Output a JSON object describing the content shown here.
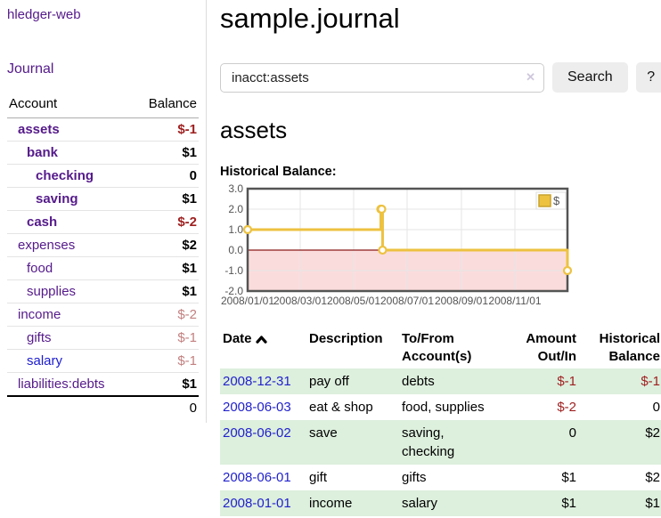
{
  "app": {
    "title": "hledger-web"
  },
  "colors": {
    "link_purple": "#551a8b",
    "link_blue": "#2222cc",
    "negative_strong": "#9e1f1f",
    "negative_muted": "#c28080",
    "series_gold": "#edc240",
    "series_gold_border": "#c9a32f",
    "stripe_green": "#ddefdd",
    "negative_region_pink": "#fbdcdc",
    "zero_line_red": "#8b1a1a",
    "axis_gray": "#545454",
    "grid_gray": "#e6e6e6"
  },
  "sidebar": {
    "nav": {
      "journal_label": "Journal"
    },
    "accounts_table": {
      "headers": {
        "account": "Account",
        "balance": "Balance"
      },
      "rows": [
        {
          "name": "assets",
          "depth": 1,
          "bold": true,
          "balance": "$-1",
          "balance_class": "neg-strong"
        },
        {
          "name": "bank",
          "depth": 2,
          "bold": true,
          "balance": "$1",
          "balance_class": "pos"
        },
        {
          "name": "checking",
          "depth": 3,
          "bold": true,
          "balance": "0",
          "balance_class": "pos"
        },
        {
          "name": "saving",
          "depth": 3,
          "bold": true,
          "balance": "$1",
          "balance_class": "pos"
        },
        {
          "name": "cash",
          "depth": 2,
          "bold": true,
          "balance": "$-2",
          "balance_class": "neg-strong"
        },
        {
          "name": "expenses",
          "depth": 1,
          "bold": false,
          "balance": "$2",
          "balance_class": "pos"
        },
        {
          "name": "food",
          "depth": 2,
          "bold": false,
          "balance": "$1",
          "balance_class": "pos"
        },
        {
          "name": "supplies",
          "depth": 2,
          "bold": false,
          "balance": "$1",
          "balance_class": "pos"
        },
        {
          "name": "income",
          "depth": 1,
          "bold": false,
          "balance": "$-2",
          "balance_class": "neg-muted"
        },
        {
          "name": "gifts",
          "depth": 2,
          "bold": false,
          "balance": "$-1",
          "balance_class": "neg-muted"
        },
        {
          "name": "salary",
          "depth": 2,
          "bold": false,
          "balance": "$-1",
          "balance_class": "neg-muted",
          "link_color": "blue"
        },
        {
          "name": "liabilities:debts",
          "depth": 1,
          "bold": false,
          "balance": "$1",
          "balance_class": "pos"
        }
      ],
      "total": "0"
    }
  },
  "main": {
    "title": "sample.journal",
    "search": {
      "value": "inacct:assets",
      "clear_icon": "✕",
      "button_label": "Search",
      "help_label": "?"
    },
    "account_heading": "assets",
    "chart_label": "Historical Balance:"
  },
  "chart_data": {
    "type": "line",
    "step": true,
    "title": "Historical Balance:",
    "series": [
      {
        "name": "$",
        "color": "#edc240",
        "points": [
          [
            "2008-01-01",
            1
          ],
          [
            "2008-06-01",
            2
          ],
          [
            "2008-06-02",
            2
          ],
          [
            "2008-06-03",
            0
          ],
          [
            "2008-12-31",
            -1
          ]
        ]
      }
    ],
    "x_range": [
      "2008-01-01",
      "2008-12-31"
    ],
    "ylim": [
      -2,
      3
    ],
    "y_ticks": [
      {
        "value": 3,
        "label": "3.0"
      },
      {
        "value": 2,
        "label": "2.0"
      },
      {
        "value": 1,
        "label": "1.0"
      },
      {
        "value": 0,
        "label": "0.0"
      },
      {
        "value": -1,
        "label": "-1.0"
      },
      {
        "value": -2,
        "label": "-2.0"
      }
    ],
    "x_ticks": [
      {
        "date": "2008-01-01",
        "label": "2008/01/01"
      },
      {
        "date": "2008-03-01",
        "label": "2008/03/01"
      },
      {
        "date": "2008-05-01",
        "label": "2008/05/01"
      },
      {
        "date": "2008-07-01",
        "label": "2008/07/01"
      },
      {
        "date": "2008-09-01",
        "label": "2008/09/01"
      },
      {
        "date": "2008-11-01",
        "label": "2008/11/01"
      }
    ],
    "legend": {
      "position": "top-right",
      "label": "$"
    },
    "grid": true,
    "negative_region_marking": true
  },
  "register_table": {
    "headers": {
      "date": "Date",
      "description": "Description",
      "accounts": "To/From Account(s)",
      "amount": "Amount Out/In",
      "balance": "Historical Balance"
    },
    "sort": {
      "column": "date",
      "direction": "ascending"
    },
    "rows": [
      {
        "date": "2008-12-31",
        "description": "pay off",
        "accounts": "debts",
        "amount": "$-1",
        "amount_neg": true,
        "balance": "$-1",
        "balance_neg": true
      },
      {
        "date": "2008-06-03",
        "description": "eat & shop",
        "accounts": "food, supplies",
        "amount": "$-2",
        "amount_neg": true,
        "balance": "0",
        "balance_neg": false
      },
      {
        "date": "2008-06-02",
        "description": "save",
        "accounts": "saving, checking",
        "amount": "0",
        "amount_neg": false,
        "balance": "$2",
        "balance_neg": false
      },
      {
        "date": "2008-06-01",
        "description": "gift",
        "accounts": "gifts",
        "amount": "$1",
        "amount_neg": false,
        "balance": "$2",
        "balance_neg": false
      },
      {
        "date": "2008-01-01",
        "description": "income",
        "accounts": "salary",
        "amount": "$1",
        "amount_neg": false,
        "balance": "$1",
        "balance_neg": false
      }
    ]
  }
}
